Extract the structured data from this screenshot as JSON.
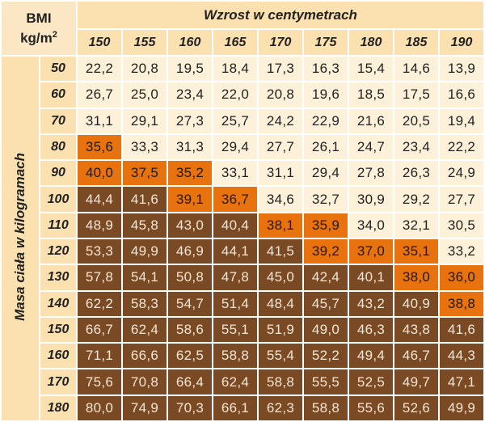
{
  "corner": {
    "line1": "BMI",
    "unit_base": "kg/m",
    "unit_exp": "2"
  },
  "height_title": "Wzrost w centymetrach",
  "weight_title": "Masa ciała w kilogramach",
  "heights": [
    "150",
    "155",
    "160",
    "165",
    "170",
    "175",
    "180",
    "185",
    "190"
  ],
  "colors": {
    "normal": "#fdf1d9",
    "overweight": "#e8730e",
    "obese": "#7a4a25"
  },
  "rows": [
    {
      "weight": "50",
      "values": [
        "22,2",
        "20,8",
        "19,5",
        "18,4",
        "17,3",
        "16,3",
        "15,4",
        "14,6",
        "13,9"
      ],
      "cat": "LLLLLLLLL"
    },
    {
      "weight": "60",
      "values": [
        "26,7",
        "25,0",
        "23,4",
        "22,0",
        "20,8",
        "19,6",
        "18,5",
        "17,5",
        "16,6"
      ],
      "cat": "LLLLLLLLL"
    },
    {
      "weight": "70",
      "values": [
        "31,1",
        "29,1",
        "27,3",
        "25,7",
        "24,2",
        "22,9",
        "21,6",
        "20,5",
        "19,4"
      ],
      "cat": "LLLLLLLLL"
    },
    {
      "weight": "80",
      "values": [
        "35,6",
        "33,3",
        "31,3",
        "29,4",
        "27,7",
        "26,1",
        "24,7",
        "23,4",
        "22,2"
      ],
      "cat": "OLLLLLLLL"
    },
    {
      "weight": "90",
      "values": [
        "40,0",
        "37,5",
        "35,2",
        "33,1",
        "31,1",
        "29,4",
        "27,8",
        "26,3",
        "24,9"
      ],
      "cat": "OOOLLLLLL"
    },
    {
      "weight": "100",
      "values": [
        "44,4",
        "41,6",
        "39,1",
        "36,7",
        "34,6",
        "32,7",
        "30,9",
        "29,2",
        "27,7"
      ],
      "cat": "BBOOLLLLL"
    },
    {
      "weight": "110",
      "values": [
        "48,9",
        "45,8",
        "43,0",
        "40,4",
        "38,1",
        "35,9",
        "34,0",
        "32,1",
        "30,5"
      ],
      "cat": "BBBBOOLLL"
    },
    {
      "weight": "120",
      "values": [
        "53,3",
        "49,9",
        "46,9",
        "44,1",
        "41,5",
        "39,2",
        "37,0",
        "35,1",
        "33,2"
      ],
      "cat": "BBBBBOOOL"
    },
    {
      "weight": "130",
      "values": [
        "57,8",
        "54,1",
        "50,8",
        "47,8",
        "45,0",
        "42,4",
        "40,1",
        "38,0",
        "36,0"
      ],
      "cat": "BBBBBBBOO"
    },
    {
      "weight": "140",
      "values": [
        "62,2",
        "58,3",
        "54,7",
        "51,4",
        "48,4",
        "45,7",
        "43,2",
        "40,9",
        "38,8"
      ],
      "cat": "BBBBBBBBO"
    },
    {
      "weight": "150",
      "values": [
        "66,7",
        "62,4",
        "58,6",
        "55,1",
        "51,9",
        "49,0",
        "46,3",
        "43,8",
        "41,6"
      ],
      "cat": "BBBBBBBBB"
    },
    {
      "weight": "160",
      "values": [
        "71,1",
        "66,6",
        "62,5",
        "58,8",
        "55,4",
        "52,2",
        "49,4",
        "46,7",
        "44,3"
      ],
      "cat": "BBBBBBBBB"
    },
    {
      "weight": "170",
      "values": [
        "75,6",
        "70,8",
        "66,4",
        "62,4",
        "58,8",
        "55,5",
        "52,5",
        "49,7",
        "47,1"
      ],
      "cat": "BBBBBBBBB"
    },
    {
      "weight": "180",
      "values": [
        "80,0",
        "74,9",
        "70,3",
        "66,1",
        "62,3",
        "58,8",
        "55,6",
        "52,6",
        "49,9"
      ],
      "cat": "BBBBBBBBB"
    }
  ]
}
